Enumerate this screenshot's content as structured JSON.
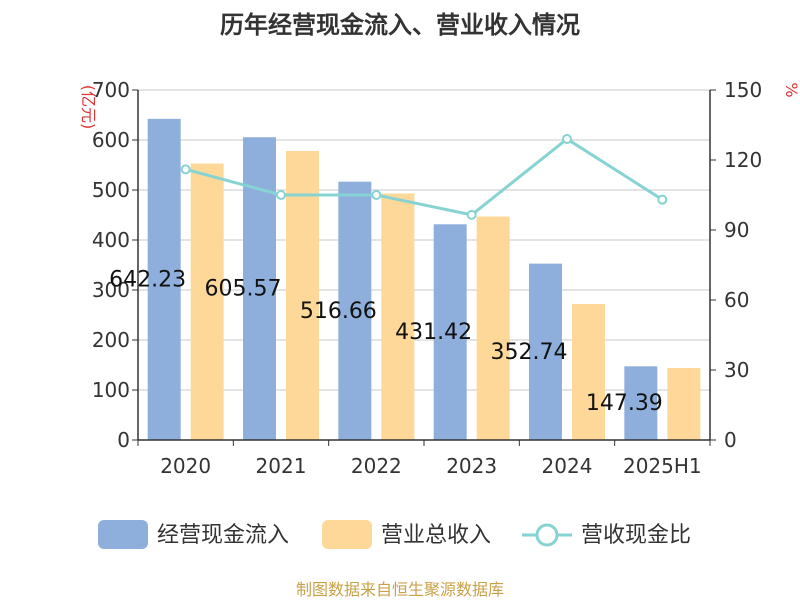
{
  "chart_data": {
    "type": "bar",
    "title": "历年经营现金流入、营业收入情况",
    "left_unit": "(亿元)",
    "right_unit": "%",
    "categories": [
      "2020",
      "2021",
      "2022",
      "2023",
      "2024",
      "2025H1"
    ],
    "ylim": [
      0,
      700
    ],
    "y_ticks": [
      "0",
      "100",
      "200",
      "300",
      "400",
      "500",
      "600",
      "700"
    ],
    "y2lim": [
      0,
      150
    ],
    "y2_ticks": [
      "0",
      "30",
      "60",
      "90",
      "120",
      "150"
    ],
    "grid": true,
    "legend_position": "bottom",
    "series": [
      {
        "name": "经营现金流入",
        "type": "bar",
        "axis": "left",
        "color": "#8eaedb",
        "values": [
          642.23,
          605.57,
          516.66,
          431.42,
          352.74,
          147.39
        ],
        "data_labels": [
          "642.23",
          "605.57",
          "516.66",
          "431.42",
          "352.74",
          "147.39"
        ]
      },
      {
        "name": "营业总收入",
        "type": "bar",
        "axis": "left",
        "color": "#fdd899",
        "values": [
          553,
          578,
          493,
          447,
          272,
          144
        ]
      },
      {
        "name": "营收现金比",
        "type": "line",
        "axis": "right",
        "color": "#86d3d3",
        "values": [
          116,
          105,
          105,
          96.5,
          129,
          103
        ]
      }
    ]
  },
  "source": "制图数据来自恒生聚源数据库"
}
